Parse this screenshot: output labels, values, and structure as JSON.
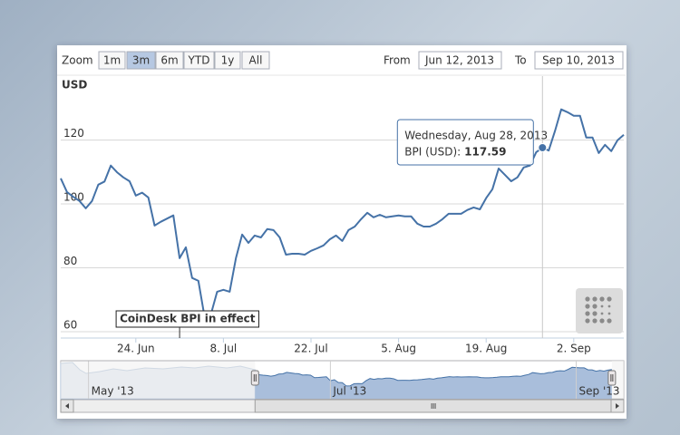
{
  "toolbar": {
    "zoom_label": "Zoom",
    "buttons": [
      {
        "label": "1m",
        "enabled": true,
        "selected": false
      },
      {
        "label": "3m",
        "enabled": true,
        "selected": true
      },
      {
        "label": "6m",
        "enabled": false,
        "selected": false
      },
      {
        "label": "YTD",
        "enabled": false,
        "selected": false
      },
      {
        "label": "1y",
        "enabled": false,
        "selected": false
      },
      {
        "label": "All",
        "enabled": true,
        "selected": false
      }
    ],
    "from_label": "From",
    "from_date": "Jun 12, 2013",
    "to_label": "To",
    "to_date": "Sep 10, 2013"
  },
  "chart_data": {
    "type": "line",
    "y_axis_title": "USD",
    "grid": true,
    "x": [
      "2013-06-12",
      "2013-06-13",
      "2013-06-14",
      "2013-06-15",
      "2013-06-16",
      "2013-06-17",
      "2013-06-18",
      "2013-06-19",
      "2013-06-20",
      "2013-06-21",
      "2013-06-22",
      "2013-06-23",
      "2013-06-24",
      "2013-06-25",
      "2013-06-26",
      "2013-06-27",
      "2013-06-28",
      "2013-06-29",
      "2013-06-30",
      "2013-07-01",
      "2013-07-02",
      "2013-07-03",
      "2013-07-04",
      "2013-07-05",
      "2013-07-06",
      "2013-07-07",
      "2013-07-08",
      "2013-07-09",
      "2013-07-10",
      "2013-07-11",
      "2013-07-12",
      "2013-07-13",
      "2013-07-14",
      "2013-07-15",
      "2013-07-16",
      "2013-07-17",
      "2013-07-18",
      "2013-07-19",
      "2013-07-20",
      "2013-07-21",
      "2013-07-22",
      "2013-07-23",
      "2013-07-24",
      "2013-07-25",
      "2013-07-26",
      "2013-07-27",
      "2013-07-28",
      "2013-07-29",
      "2013-07-30",
      "2013-07-31",
      "2013-08-01",
      "2013-08-02",
      "2013-08-03",
      "2013-08-04",
      "2013-08-05",
      "2013-08-06",
      "2013-08-07",
      "2013-08-08",
      "2013-08-09",
      "2013-08-10",
      "2013-08-11",
      "2013-08-12",
      "2013-08-13",
      "2013-08-14",
      "2013-08-15",
      "2013-08-16",
      "2013-08-17",
      "2013-08-18",
      "2013-08-19",
      "2013-08-20",
      "2013-08-21",
      "2013-08-22",
      "2013-08-23",
      "2013-08-24",
      "2013-08-25",
      "2013-08-26",
      "2013-08-27",
      "2013-08-28",
      "2013-08-29",
      "2013-08-30",
      "2013-08-31",
      "2013-09-01",
      "2013-09-02",
      "2013-09-03",
      "2013-09-04",
      "2013-09-05",
      "2013-09-06",
      "2013-09-07",
      "2013-09-08",
      "2013-09-09",
      "2013-09-10"
    ],
    "series": [
      {
        "color": "#4572a7",
        "values": [
          108,
          103.7,
          102.2,
          100.9,
          98.6,
          100.9,
          106,
          107,
          112,
          109.9,
          108.3,
          107.1,
          102.6,
          103.5,
          102,
          93.2,
          94.4,
          95.4,
          96.4,
          83,
          86.4,
          76.8,
          75.9,
          64.5,
          65.4,
          72.5,
          73.1,
          72.5,
          83,
          90.4,
          87.8,
          90.1,
          89.5,
          92.1,
          91.8,
          89.5,
          84.1,
          84.4,
          84.4,
          84.1,
          85.3,
          86.1,
          87,
          88.9,
          90.1,
          88.4,
          91.8,
          92.9,
          95.2,
          97.2,
          95.8,
          96.6,
          95.8,
          96.1,
          96.4,
          96.1,
          96.1,
          93.8,
          92.9,
          92.9,
          93.8,
          95.2,
          96.9,
          96.9,
          96.9,
          98.1,
          98.9,
          98.3,
          101.8,
          104.6,
          111.1,
          109.1,
          107.1,
          108.3,
          111.4,
          112,
          116.2,
          117.59,
          116.7,
          122.8,
          129.6,
          128.7,
          127.6,
          127.6,
          120.8,
          120.8,
          115.9,
          118.5,
          116.5,
          119.9,
          121.6
        ]
      }
    ],
    "xlim": [
      "2013-06-12",
      "2013-09-10"
    ],
    "xticks": [
      {
        "value": "2013-06-24",
        "label": "24. Jun"
      },
      {
        "value": "2013-07-08",
        "label": "8. Jul"
      },
      {
        "value": "2013-07-22",
        "label": "22. Jul"
      },
      {
        "value": "2013-08-05",
        "label": "5. Aug"
      },
      {
        "value": "2013-08-19",
        "label": "19. Aug"
      },
      {
        "value": "2013-09-02",
        "label": "2. Sep"
      }
    ],
    "ylim": [
      58,
      140
    ],
    "yticks": [
      60,
      80,
      100,
      120
    ],
    "tooltip": {
      "x": "2013-08-28",
      "date": "Wednesday, Aug 28, 2013",
      "label": "BPI (USD):"
    },
    "flags": [
      {
        "x": "2013-07-01",
        "text": "CoinDesk BPI in effect"
      }
    ],
    "navigator": {
      "xlim": [
        "2013-04-24",
        "2013-09-13"
      ],
      "ticks": [
        {
          "value": "2013-05-01",
          "label": "May '13"
        },
        {
          "value": "2013-07-01",
          "label": "Jul '13"
        },
        {
          "value": "2013-09-01",
          "label": "Sep '13"
        }
      ]
    }
  }
}
